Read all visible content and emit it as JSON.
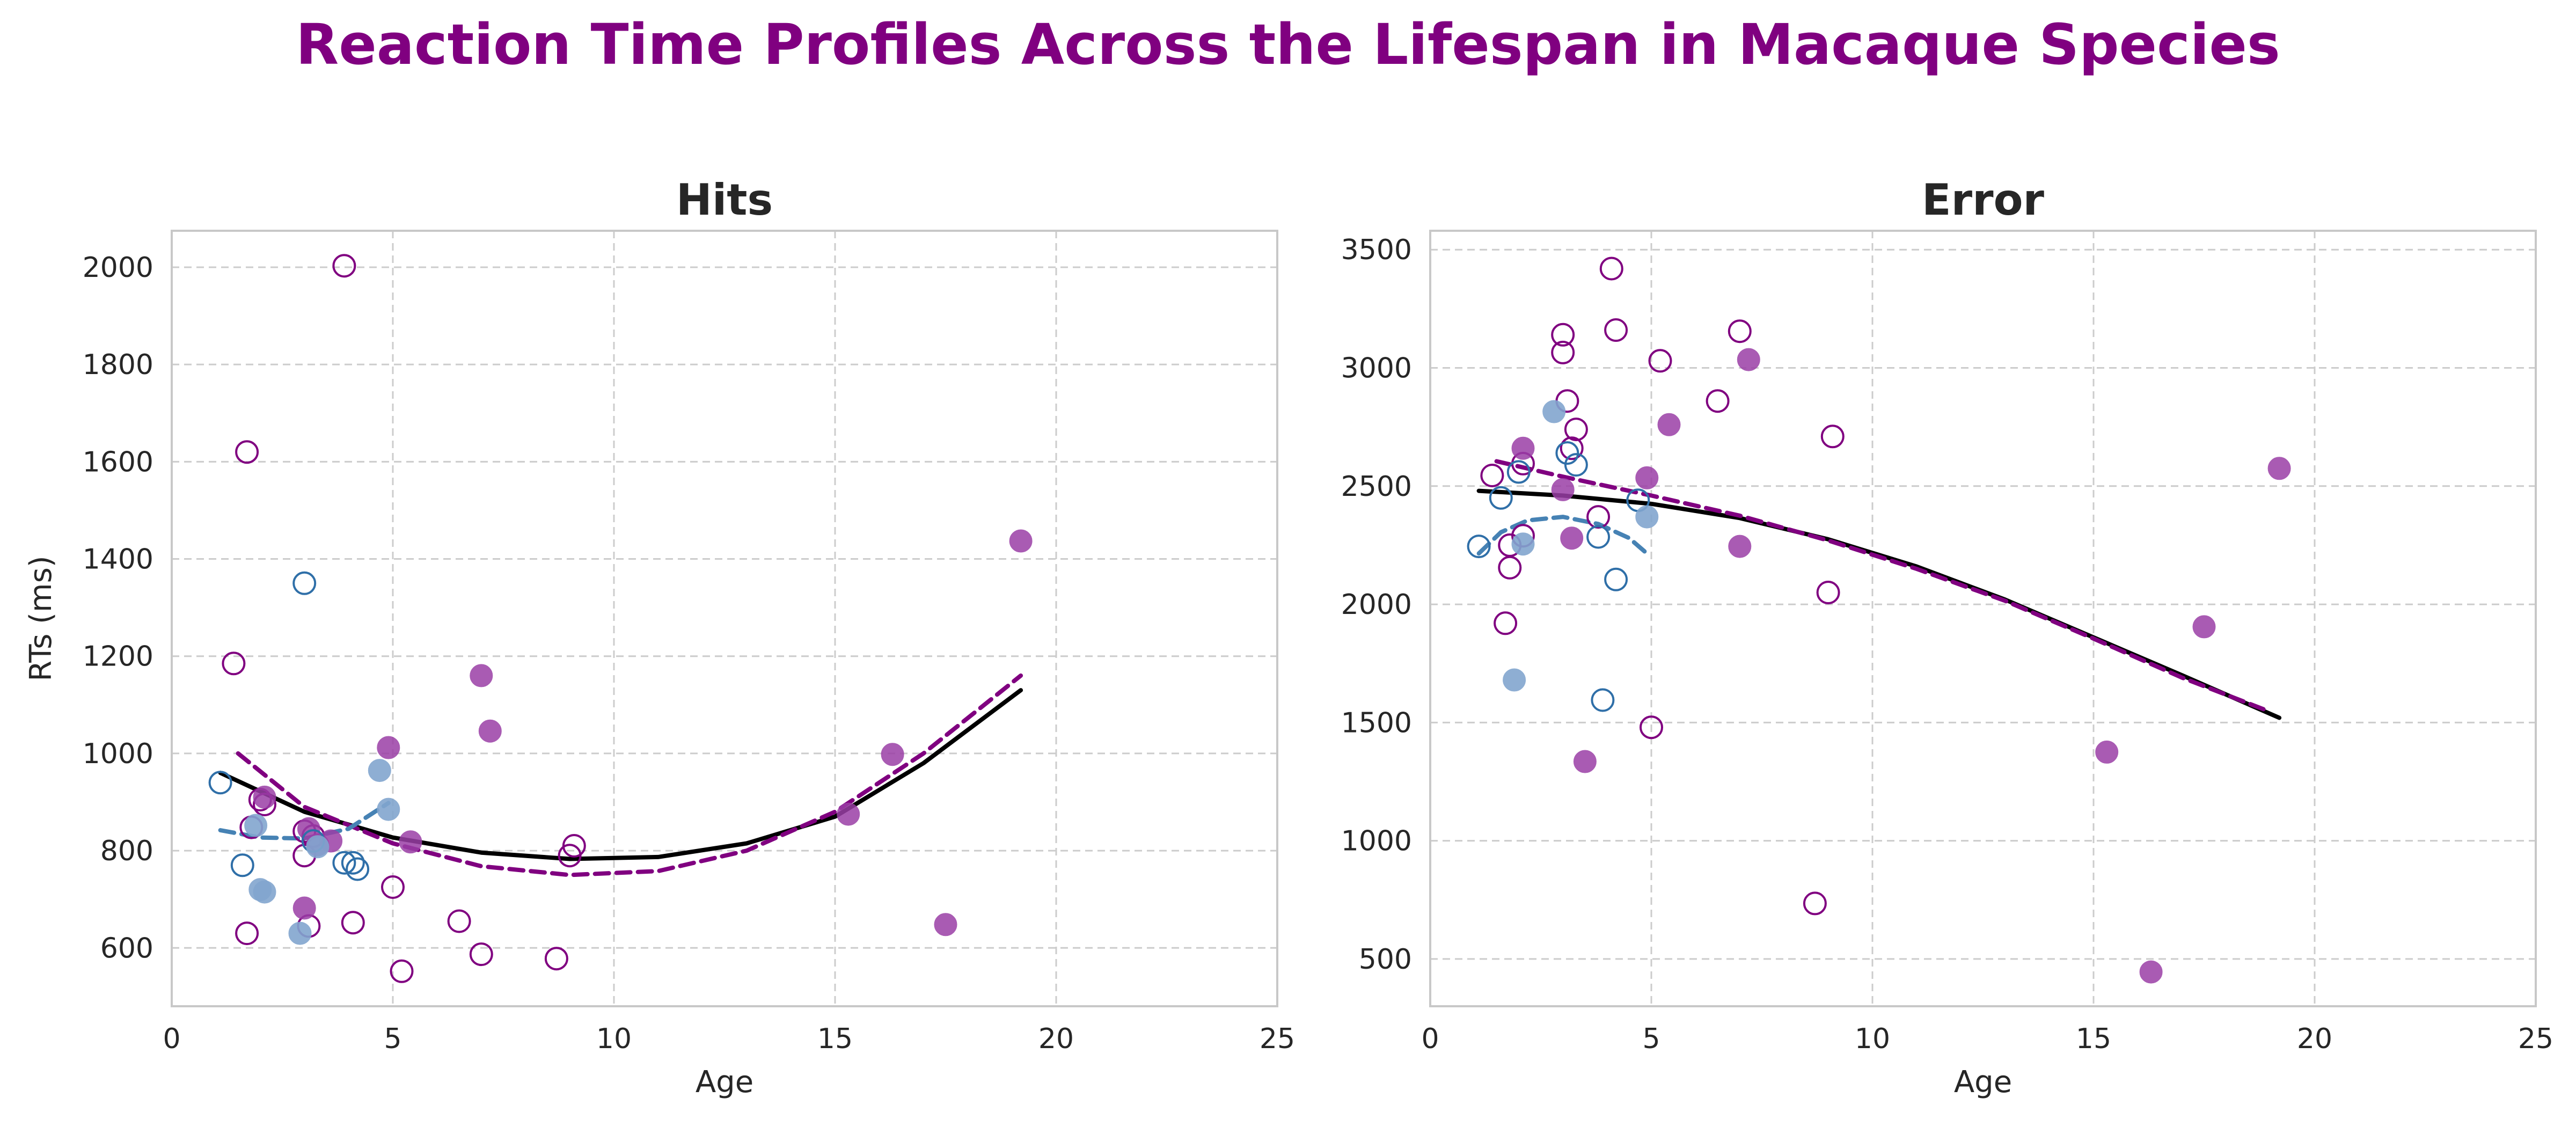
{
  "title": "Reaction Time Profiles Across the Lifespan in Macaque Species",
  "colors": {
    "title": "#800080",
    "purple": "#800080",
    "purple_fill": "#9b3fa6",
    "blue": "#2f6fa8",
    "blue_fill": "#82a6cf",
    "blue_line": "#4682b4",
    "black": "#000000",
    "grid": "#cccccc",
    "frame": "#c8c8c8"
  },
  "chart_data": [
    {
      "type": "scatter",
      "title": "Hits",
      "xlabel": "Age",
      "ylabel": "RTs (ms)",
      "xlim": [
        0,
        25
      ],
      "ylim": [
        480,
        2075
      ],
      "xticks": [
        0,
        5,
        10,
        15,
        20,
        25
      ],
      "yticks": [
        600,
        800,
        1000,
        1200,
        1400,
        1600,
        1800,
        2000
      ],
      "grid": true,
      "series": [
        {
          "marker": "open-purple",
          "points": [
            [
              1.4,
              1185
            ],
            [
              1.7,
              1620
            ],
            [
              1.7,
              630
            ],
            [
              1.8,
              848
            ],
            [
              2.0,
              905
            ],
            [
              2.1,
              895
            ],
            [
              3.0,
              790
            ],
            [
              3.0,
              840
            ],
            [
              3.1,
              645
            ],
            [
              3.2,
              830
            ],
            [
              3.9,
              2003
            ],
            [
              4.1,
              652
            ],
            [
              5.0,
              725
            ],
            [
              5.2,
              552
            ],
            [
              6.5,
              655
            ],
            [
              7.0,
              587
            ],
            [
              8.7,
              578
            ],
            [
              9.0,
              790
            ],
            [
              9.1,
              810
            ]
          ]
        },
        {
          "marker": "filled-purple",
          "points": [
            [
              2.1,
              910
            ],
            [
              3.0,
              682
            ],
            [
              3.1,
              845
            ],
            [
              3.3,
              812
            ],
            [
              3.6,
              820
            ],
            [
              4.9,
              1012
            ],
            [
              5.4,
              818
            ],
            [
              7.0,
              1160
            ],
            [
              7.2,
              1046
            ],
            [
              15.3,
              875
            ],
            [
              16.3,
              998
            ],
            [
              17.5,
              648
            ],
            [
              19.2,
              1437
            ]
          ]
        },
        {
          "marker": "open-blue",
          "points": [
            [
              1.1,
              940
            ],
            [
              1.6,
              770
            ],
            [
              3.0,
              1350
            ],
            [
              3.2,
              820
            ],
            [
              3.9,
              775
            ],
            [
              4.1,
              775
            ],
            [
              4.2,
              762
            ]
          ]
        },
        {
          "marker": "filled-blue",
          "points": [
            [
              1.9,
              852
            ],
            [
              2.0,
              720
            ],
            [
              2.1,
              715
            ],
            [
              2.9,
              630
            ],
            [
              3.3,
              808
            ],
            [
              4.7,
              965
            ],
            [
              4.9,
              885
            ]
          ]
        }
      ],
      "fits": [
        {
          "style": "solid-black",
          "points": [
            [
              1.1,
              960
            ],
            [
              3,
              880
            ],
            [
              5,
              827
            ],
            [
              7,
              796
            ],
            [
              9,
              783
            ],
            [
              11,
              787
            ],
            [
              13,
              815
            ],
            [
              15,
              870
            ],
            [
              17,
              980
            ],
            [
              19.2,
              1130
            ]
          ]
        },
        {
          "style": "dashed-purple",
          "points": [
            [
              1.5,
              1000
            ],
            [
              3,
              890
            ],
            [
              5,
              815
            ],
            [
              7,
              768
            ],
            [
              9,
              750
            ],
            [
              11,
              758
            ],
            [
              13,
              800
            ],
            [
              15,
              880
            ],
            [
              17,
              1000
            ],
            [
              19.2,
              1160
            ]
          ]
        },
        {
          "style": "dashed-blue",
          "points": [
            [
              1.1,
              842
            ],
            [
              2,
              827
            ],
            [
              3,
              825
            ],
            [
              4,
              845
            ],
            [
              4.9,
              898
            ]
          ]
        }
      ]
    },
    {
      "type": "scatter",
      "title": "Error",
      "xlabel": "Age",
      "ylabel": "",
      "xlim": [
        0,
        25
      ],
      "ylim": [
        300,
        3580
      ],
      "xticks": [
        0,
        5,
        10,
        15,
        20,
        25
      ],
      "yticks": [
        500,
        1000,
        1500,
        2000,
        2500,
        3000,
        3500
      ],
      "grid": true,
      "series": [
        {
          "marker": "open-purple",
          "points": [
            [
              1.4,
              2545
            ],
            [
              1.7,
              1920
            ],
            [
              1.8,
              2155
            ],
            [
              1.8,
              2250
            ],
            [
              2.1,
              2595
            ],
            [
              2.1,
              2290
            ],
            [
              3.0,
              3140
            ],
            [
              3.0,
              3065
            ],
            [
              3.1,
              2860
            ],
            [
              3.2,
              2660
            ],
            [
              3.3,
              2740
            ],
            [
              3.8,
              2370
            ],
            [
              4.1,
              3420
            ],
            [
              4.2,
              3160
            ],
            [
              5.0,
              1480
            ],
            [
              5.2,
              3030
            ],
            [
              6.5,
              2860
            ],
            [
              7.0,
              3155
            ],
            [
              8.7,
              735
            ],
            [
              9.0,
              2050
            ],
            [
              9.1,
              2710
            ]
          ]
        },
        {
          "marker": "filled-purple",
          "points": [
            [
              2.1,
              2660
            ],
            [
              3.0,
              2485
            ],
            [
              3.2,
              2280
            ],
            [
              3.5,
              1335
            ],
            [
              4.9,
              2535
            ],
            [
              5.4,
              2760
            ],
            [
              7.0,
              2245
            ],
            [
              7.2,
              3035
            ],
            [
              15.3,
              1375
            ],
            [
              16.3,
              445
            ],
            [
              17.5,
              1905
            ],
            [
              19.2,
              2575
            ]
          ]
        },
        {
          "marker": "open-blue",
          "points": [
            [
              1.1,
              2245
            ],
            [
              1.6,
              2450
            ],
            [
              2.0,
              2560
            ],
            [
              3.1,
              2640
            ],
            [
              3.3,
              2590
            ],
            [
              3.8,
              2285
            ],
            [
              3.9,
              1595
            ],
            [
              4.2,
              2105
            ],
            [
              4.7,
              2440
            ]
          ]
        },
        {
          "marker": "filled-blue",
          "points": [
            [
              1.9,
              1680
            ],
            [
              2.1,
              2255
            ],
            [
              2.8,
              2815
            ],
            [
              4.9,
              2370
            ]
          ]
        }
      ],
      "fits": [
        {
          "style": "solid-black",
          "points": [
            [
              1.1,
              2480
            ],
            [
              3,
              2460
            ],
            [
              5,
              2425
            ],
            [
              7,
              2365
            ],
            [
              9,
              2275
            ],
            [
              11,
              2160
            ],
            [
              13,
              2020
            ],
            [
              15,
              1860
            ],
            [
              17,
              1700
            ],
            [
              19.2,
              1520
            ]
          ]
        },
        {
          "style": "dashed-purple",
          "points": [
            [
              1.5,
              2605
            ],
            [
              3,
              2540
            ],
            [
              5,
              2460
            ],
            [
              7,
              2375
            ],
            [
              9,
              2270
            ],
            [
              11,
              2150
            ],
            [
              13,
              2015
            ],
            [
              15,
              1855
            ],
            [
              17,
              1690
            ],
            [
              19,
              1545
            ]
          ]
        },
        {
          "style": "dashed-blue",
          "points": [
            [
              1.1,
              2215
            ],
            [
              1.6,
              2305
            ],
            [
              2.2,
              2355
            ],
            [
              3,
              2370
            ],
            [
              3.8,
              2340
            ],
            [
              4.5,
              2280
            ],
            [
              4.9,
              2215
            ]
          ]
        }
      ]
    }
  ]
}
